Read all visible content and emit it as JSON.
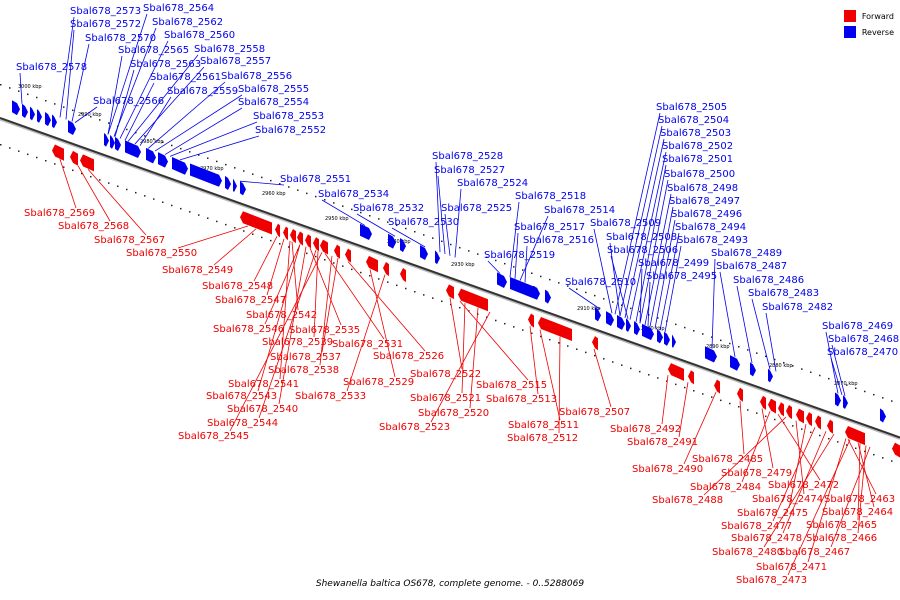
{
  "legend": {
    "forward": {
      "label": "Forward",
      "color": "#ee0000"
    },
    "reverse": {
      "label": "Reverse",
      "color": "#0000ee"
    }
  },
  "caption": "Shewanella baltica OS678, complete genome. - 0..5288069",
  "scale_ticks": [
    "3000 kbp",
    "2990 kbp",
    "2980 kbp",
    "2970 kbp",
    "2960 kbp",
    "2950 kbp",
    "2940 kbp",
    "2930 kbp",
    "2920 kbp",
    "2910 kbp",
    "2900 kbp",
    "2890 kbp",
    "2880 kbp",
    "2870 kbp"
  ],
  "reverse_labels": [
    "Sbal678_2573",
    "Sbal678_2564",
    "Sbal678_2572",
    "Sbal678_2562",
    "Sbal678_2570",
    "Sbal678_2560",
    "Sbal678_2565",
    "Sbal678_2558",
    "Sbal678_2563",
    "Sbal678_2557",
    "Sbal678_2578",
    "Sbal678_2561",
    "Sbal678_2556",
    "Sbal678_2559",
    "Sbal678_2555",
    "Sbal678_2566",
    "Sbal678_2554",
    "Sbal678_2553",
    "Sbal678_2552",
    "Sbal678_2551",
    "Sbal678_2534",
    "Sbal678_2532",
    "Sbal678_2530",
    "Sbal678_2528",
    "Sbal678_2527",
    "Sbal678_2524",
    "Sbal678_2525",
    "Sbal678_2518",
    "Sbal678_2514",
    "Sbal678_2517",
    "Sbal678_2516",
    "Sbal678_2519",
    "Sbal678_2510",
    "Sbal678_2505",
    "Sbal678_2504",
    "Sbal678_2503",
    "Sbal678_2502",
    "Sbal678_2501",
    "Sbal678_2500",
    "Sbal678_2498",
    "Sbal678_2497",
    "Sbal678_2496",
    "Sbal678_2509",
    "Sbal678_2494",
    "Sbal678_2508",
    "Sbal678_2493",
    "Sbal678_2506",
    "Sbal678_2489",
    "Sbal678_2499",
    "Sbal678_2487",
    "Sbal678_2495",
    "Sbal678_2486",
    "Sbal678_2483",
    "Sbal678_2482",
    "Sbal678_2469",
    "Sbal678_2468",
    "Sbal678_2470"
  ],
  "forward_labels": [
    "Sbal678_2569",
    "Sbal678_2568",
    "Sbal678_2567",
    "Sbal678_2550",
    "Sbal678_2549",
    "Sbal678_2548",
    "Sbal678_2547",
    "Sbal678_2542",
    "Sbal678_2546",
    "Sbal678_2535",
    "Sbal678_2539",
    "Sbal678_2531",
    "Sbal678_2537",
    "Sbal678_2526",
    "Sbal678_2538",
    "Sbal678_2541",
    "Sbal678_2529",
    "Sbal678_2543",
    "Sbal678_2533",
    "Sbal678_2540",
    "Sbal678_2544",
    "Sbal678_2545",
    "Sbal678_2522",
    "Sbal678_2515",
    "Sbal678_2521",
    "Sbal678_2513",
    "Sbal678_2520",
    "Sbal678_2523",
    "Sbal678_2511",
    "Sbal678_2507",
    "Sbal678_2512",
    "Sbal678_2492",
    "Sbal678_2491",
    "Sbal678_2490",
    "Sbal678_2485",
    "Sbal678_2479",
    "Sbal678_2484",
    "Sbal678_2472",
    "Sbal678_2488",
    "Sbal678_2474",
    "Sbal678_2463",
    "Sbal678_2475",
    "Sbal678_2464",
    "Sbal678_2477",
    "Sbal678_2465",
    "Sbal678_2478",
    "Sbal678_2466",
    "Sbal678_2480",
    "Sbal678_2467",
    "Sbal678_2471",
    "Sbal678_2473"
  ]
}
